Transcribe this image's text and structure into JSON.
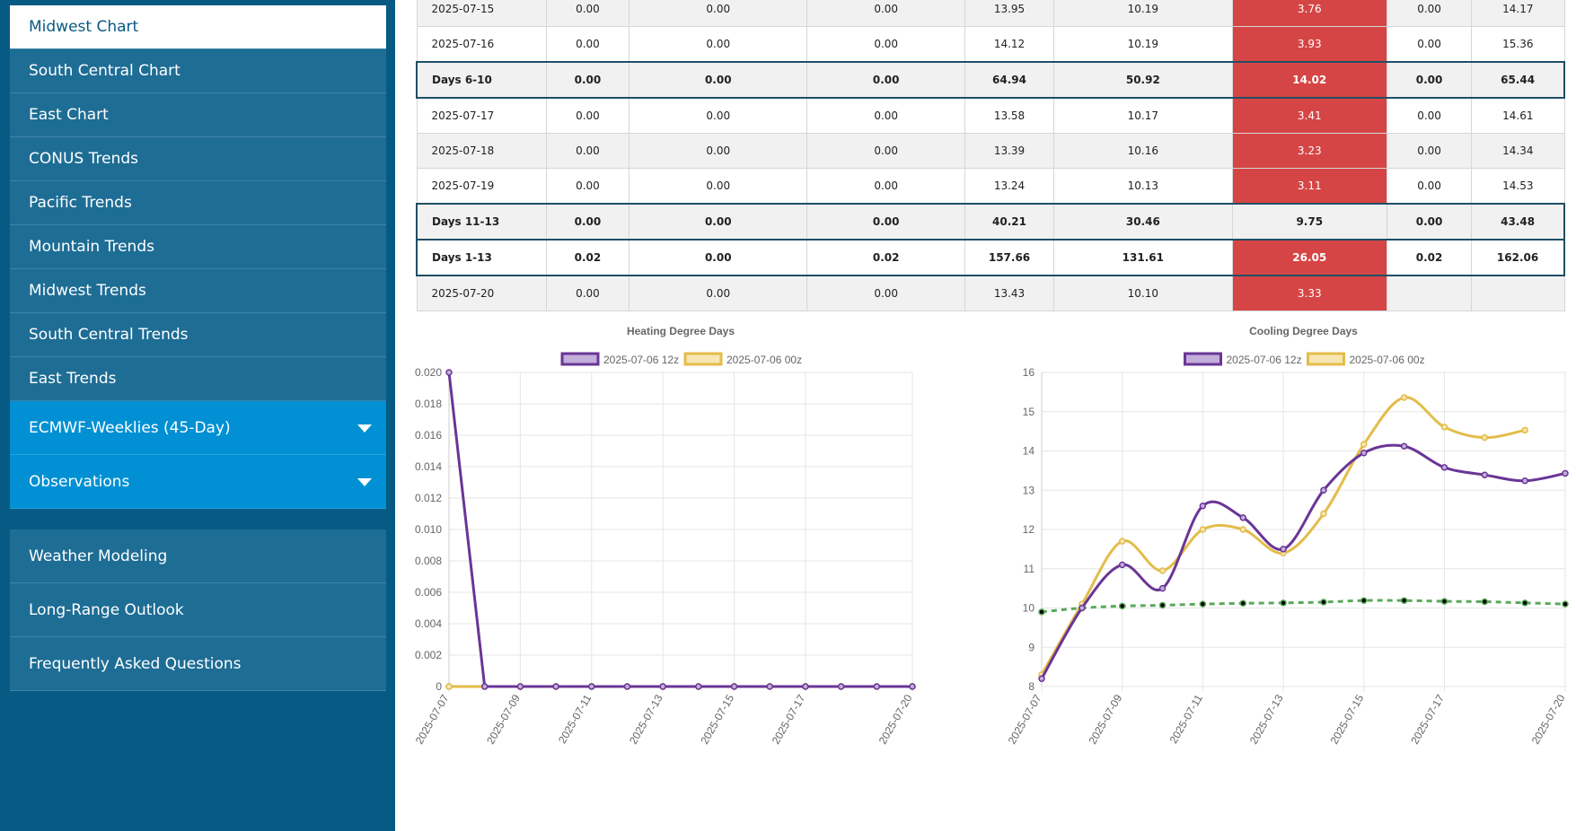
{
  "sidebar": {
    "items": [
      {
        "label": "Midwest Chart",
        "active": true
      },
      {
        "label": "South Central Chart"
      },
      {
        "label": "East Chart"
      },
      {
        "label": "CONUS Trends"
      },
      {
        "label": "Pacific Trends"
      },
      {
        "label": "Mountain Trends"
      },
      {
        "label": "Midwest Trends"
      },
      {
        "label": "South Central Trends"
      },
      {
        "label": "East Trends"
      }
    ],
    "dropdowns": [
      {
        "label": "ECMWF-Weeklies (45-Day)"
      },
      {
        "label": "Observations"
      }
    ],
    "bottom_items": [
      {
        "label": "Weather Modeling"
      },
      {
        "label": "Long-Range Outlook"
      },
      {
        "label": "Frequently Asked Questions"
      }
    ]
  },
  "table": {
    "rows": [
      {
        "cells": [
          "2025-07-15",
          "0.00",
          "0.00",
          "0.00",
          "13.95",
          "10.19",
          "3.76",
          "0.00",
          "14.17"
        ],
        "summary": false
      },
      {
        "cells": [
          "2025-07-16",
          "0.00",
          "0.00",
          "0.00",
          "14.12",
          "10.19",
          "3.93",
          "0.00",
          "15.36"
        ],
        "summary": false
      },
      {
        "cells": [
          "Days 6-10",
          "0.00",
          "0.00",
          "0.00",
          "64.94",
          "50.92",
          "14.02",
          "0.00",
          "65.44"
        ],
        "summary": true
      },
      {
        "cells": [
          "2025-07-17",
          "0.00",
          "0.00",
          "0.00",
          "13.58",
          "10.17",
          "3.41",
          "0.00",
          "14.61"
        ],
        "summary": false
      },
      {
        "cells": [
          "2025-07-18",
          "0.00",
          "0.00",
          "0.00",
          "13.39",
          "10.16",
          "3.23",
          "0.00",
          "14.34"
        ],
        "summary": false
      },
      {
        "cells": [
          "2025-07-19",
          "0.00",
          "0.00",
          "0.00",
          "13.24",
          "10.13",
          "3.11",
          "0.00",
          "14.53"
        ],
        "summary": false
      },
      {
        "cells": [
          "Days 11-13",
          "0.00",
          "0.00",
          "0.00",
          "40.21",
          "30.46",
          "9.75",
          "0.00",
          "43.48"
        ],
        "summary": true
      },
      {
        "cells": [
          "Days 1-13",
          "0.02",
          "0.00",
          "0.02",
          "157.66",
          "131.61",
          "26.05",
          "0.02",
          "162.06"
        ],
        "summary": true
      },
      {
        "cells": [
          "2025-07-20",
          "0.00",
          "0.00",
          "0.00",
          "13.43",
          "10.10",
          "3.33",
          "",
          ""
        ],
        "summary": false
      }
    ],
    "highlight_color": "#d64545"
  },
  "chart_data": [
    {
      "type": "line",
      "title": "Heating Degree Days",
      "xlabel": "",
      "ylabel": "",
      "x": [
        "2025-07-07",
        "2025-07-08",
        "2025-07-09",
        "2025-07-10",
        "2025-07-11",
        "2025-07-12",
        "2025-07-13",
        "2025-07-14",
        "2025-07-15",
        "2025-07-16",
        "2025-07-17",
        "2025-07-18",
        "2025-07-19",
        "2025-07-20"
      ],
      "x_tick_labels": [
        "2025-07-07",
        "2025-07-09",
        "2025-07-11",
        "2025-07-13",
        "2025-07-15",
        "2025-07-17",
        "2025-07-20"
      ],
      "y_tick_labels": [
        "0",
        "0.002",
        "0.004",
        "0.006",
        "0.008",
        "0.010",
        "0.012",
        "0.014",
        "0.016",
        "0.018",
        "0.020"
      ],
      "ylim": [
        0,
        0.02
      ],
      "grid": true,
      "legend_position": "top",
      "series": [
        {
          "name": "2025-07-06 12z",
          "color": "#6a3596",
          "fill": "#c3aedb",
          "values": [
            0.02,
            0,
            0,
            0,
            0,
            0,
            0,
            0,
            0,
            0,
            0,
            0,
            0,
            0
          ]
        },
        {
          "name": "2025-07-06 00z",
          "color": "#e3bc4a",
          "fill": "#f6e6b2",
          "values": [
            0,
            0,
            0,
            0,
            0,
            0,
            0,
            0,
            0,
            0,
            0,
            0,
            0,
            0
          ]
        },
        {
          "color": "#5aa95a",
          "dashed": true,
          "values": [
            0,
            0,
            0,
            0,
            0,
            0,
            0,
            0,
            0,
            0,
            0,
            0,
            0,
            0
          ]
        }
      ]
    },
    {
      "type": "line",
      "title": "Cooling Degree Days",
      "xlabel": "",
      "ylabel": "",
      "x": [
        "2025-07-07",
        "2025-07-08",
        "2025-07-09",
        "2025-07-10",
        "2025-07-11",
        "2025-07-12",
        "2025-07-13",
        "2025-07-14",
        "2025-07-15",
        "2025-07-16",
        "2025-07-17",
        "2025-07-18",
        "2025-07-19",
        "2025-07-20"
      ],
      "x_tick_labels": [
        "2025-07-07",
        "2025-07-09",
        "2025-07-11",
        "2025-07-13",
        "2025-07-15",
        "2025-07-17",
        "2025-07-20"
      ],
      "y_tick_labels": [
        "8",
        "9",
        "10",
        "11",
        "12",
        "13",
        "14",
        "15",
        "16"
      ],
      "ylim": [
        8,
        16
      ],
      "grid": true,
      "legend_position": "top",
      "series": [
        {
          "name": "2025-07-06 12z",
          "color": "#6a3596",
          "fill": "#c3aedb",
          "values": [
            8.2,
            10.0,
            11.1,
            10.5,
            12.6,
            12.3,
            11.5,
            13.0,
            13.95,
            14.12,
            13.58,
            13.39,
            13.24,
            13.43
          ]
        },
        {
          "name": "2025-07-06 00z",
          "color": "#e3bc4a",
          "fill": "#f6e6b2",
          "values": [
            8.3,
            10.1,
            11.7,
            10.95,
            12.0,
            12.0,
            11.4,
            12.4,
            14.17,
            15.36,
            14.61,
            14.34,
            14.53,
            null
          ]
        },
        {
          "color": "#5aa95a",
          "dashed": true,
          "values": [
            9.9,
            10.0,
            10.05,
            10.07,
            10.1,
            10.12,
            10.13,
            10.15,
            10.19,
            10.19,
            10.17,
            10.16,
            10.13,
            10.1
          ]
        }
      ]
    }
  ]
}
